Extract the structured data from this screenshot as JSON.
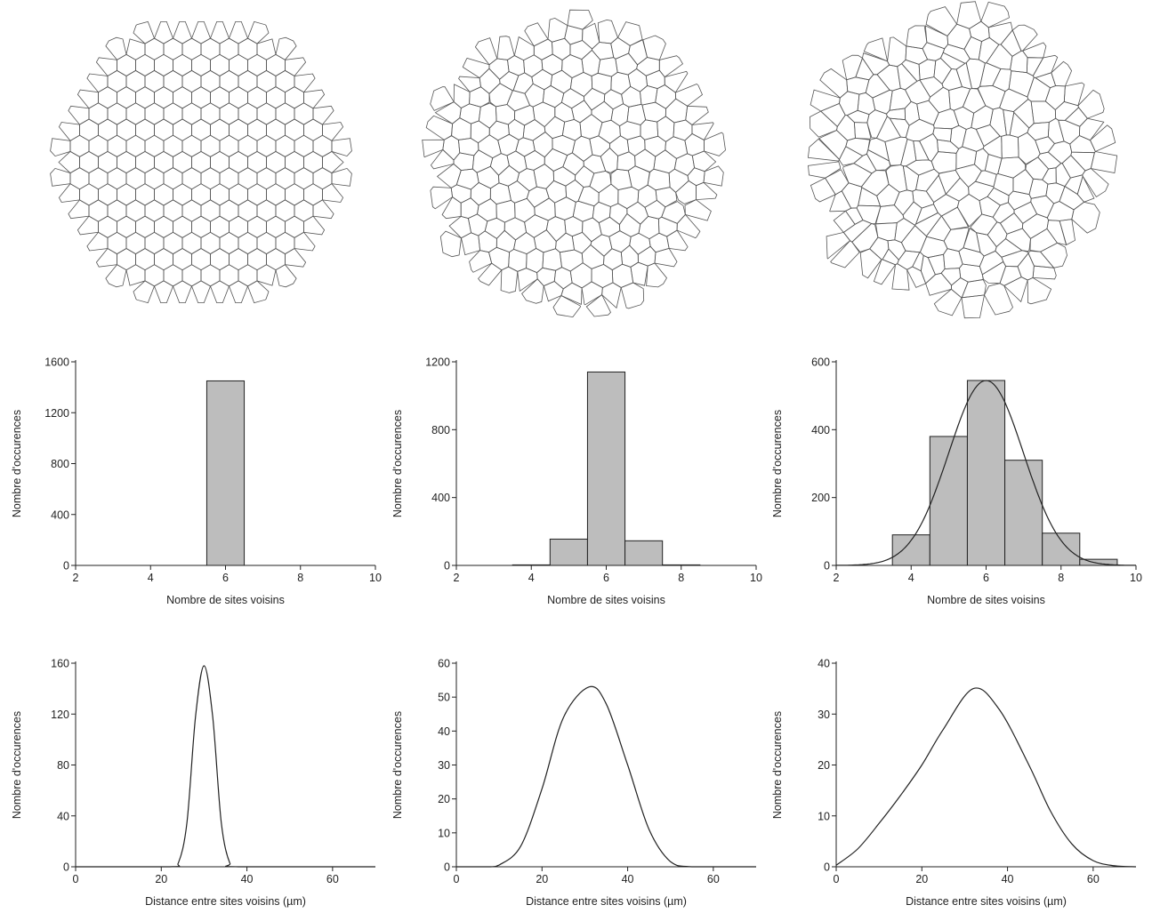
{
  "figure": {
    "colors": {
      "ink": "#222222",
      "bar_fill": "#bdbdbd",
      "cell_stroke": "#555555"
    },
    "tessellations": [
      {
        "name": "regular-hexagonal",
        "disorder": 0.0
      },
      {
        "name": "moderately-disordered",
        "disorder": 0.45
      },
      {
        "name": "strongly-disordered",
        "disorder": 1.0
      }
    ]
  },
  "chart_data": [
    {
      "type": "bar",
      "panel": "neighbors-1",
      "xlabel": "Nombre de sites voisins",
      "ylabel": "Nombre d'occurences",
      "xlim": [
        2,
        10
      ],
      "ylim": [
        0,
        1600
      ],
      "xticks": [
        2,
        4,
        6,
        8,
        10
      ],
      "yticks": [
        0,
        400,
        800,
        1200,
        1600
      ],
      "categories": [
        6
      ],
      "values": [
        1450
      ],
      "bin_width": 1
    },
    {
      "type": "bar",
      "panel": "neighbors-2",
      "xlabel": "Nombre de sites voisins",
      "ylabel": "Nombre d'occurences",
      "xlim": [
        2,
        10
      ],
      "ylim": [
        0,
        1200
      ],
      "xticks": [
        2,
        4,
        6,
        8,
        10
      ],
      "yticks": [
        0,
        400,
        800,
        1200
      ],
      "categories": [
        4,
        5,
        6,
        7,
        8
      ],
      "values": [
        3,
        155,
        1140,
        145,
        3
      ],
      "bin_width": 1
    },
    {
      "type": "bar",
      "panel": "neighbors-3",
      "xlabel": "Nombre de sites voisins",
      "ylabel": "Nombre d'occurences",
      "xlim": [
        2,
        10
      ],
      "ylim": [
        0,
        600
      ],
      "xticks": [
        2,
        4,
        6,
        8,
        10
      ],
      "yticks": [
        0,
        200,
        400,
        600
      ],
      "categories": [
        4,
        5,
        6,
        7,
        8,
        9
      ],
      "values": [
        90,
        380,
        545,
        310,
        95,
        18
      ],
      "bin_width": 1,
      "fit": {
        "type": "gaussian",
        "mean": 6,
        "sigma": 1.0,
        "peak": 545
      }
    },
    {
      "type": "line",
      "panel": "distance-1",
      "xlabel": "Distance entre sites voisins (µm)",
      "ylabel": "Nombre d'occurences",
      "xlim": [
        0,
        70
      ],
      "ylim": [
        0,
        160
      ],
      "xticks": [
        0,
        20,
        40,
        60
      ],
      "yticks": [
        0,
        40,
        80,
        120,
        160
      ],
      "series": [
        {
          "x": [
            0,
            22,
            24,
            26,
            28,
            30,
            32,
            34,
            36,
            38,
            70
          ],
          "y": [
            0,
            0,
            3,
            35,
            118,
            158,
            118,
            35,
            3,
            0,
            0
          ]
        }
      ],
      "zero_line_dashed": true
    },
    {
      "type": "line",
      "panel": "distance-2",
      "xlabel": "Distance entre sites voisins (µm)",
      "ylabel": "Nombre d'occurences",
      "xlim": [
        0,
        70
      ],
      "ylim": [
        0,
        60
      ],
      "xticks": [
        0,
        20,
        40,
        60
      ],
      "yticks": [
        0,
        10,
        20,
        30,
        40,
        50,
        60
      ],
      "series": [
        {
          "x": [
            0,
            8,
            10,
            15,
            20,
            25,
            31,
            35,
            40,
            45,
            50,
            55,
            70
          ],
          "y": [
            0,
            0,
            0.5,
            6,
            23,
            44,
            53,
            48,
            30,
            11,
            1.5,
            0,
            0
          ]
        }
      ],
      "zero_line_dashed": true
    },
    {
      "type": "line",
      "panel": "distance-3",
      "xlabel": "Distance entre sites voisins (µm)",
      "ylabel": "Nombre d'occurences",
      "xlim": [
        0,
        70
      ],
      "ylim": [
        0,
        40
      ],
      "xticks": [
        0,
        20,
        40,
        60
      ],
      "yticks": [
        0,
        10,
        20,
        30,
        40
      ],
      "series": [
        {
          "x": [
            0,
            5,
            10,
            15,
            20,
            25,
            32,
            38,
            45,
            50,
            55,
            60,
            65,
            70
          ],
          "y": [
            0.3,
            3.5,
            8.5,
            14,
            20,
            27,
            35,
            31,
            20,
            11,
            4.5,
            1.2,
            0.2,
            0
          ]
        }
      ],
      "zero_line_dashed": false
    }
  ]
}
